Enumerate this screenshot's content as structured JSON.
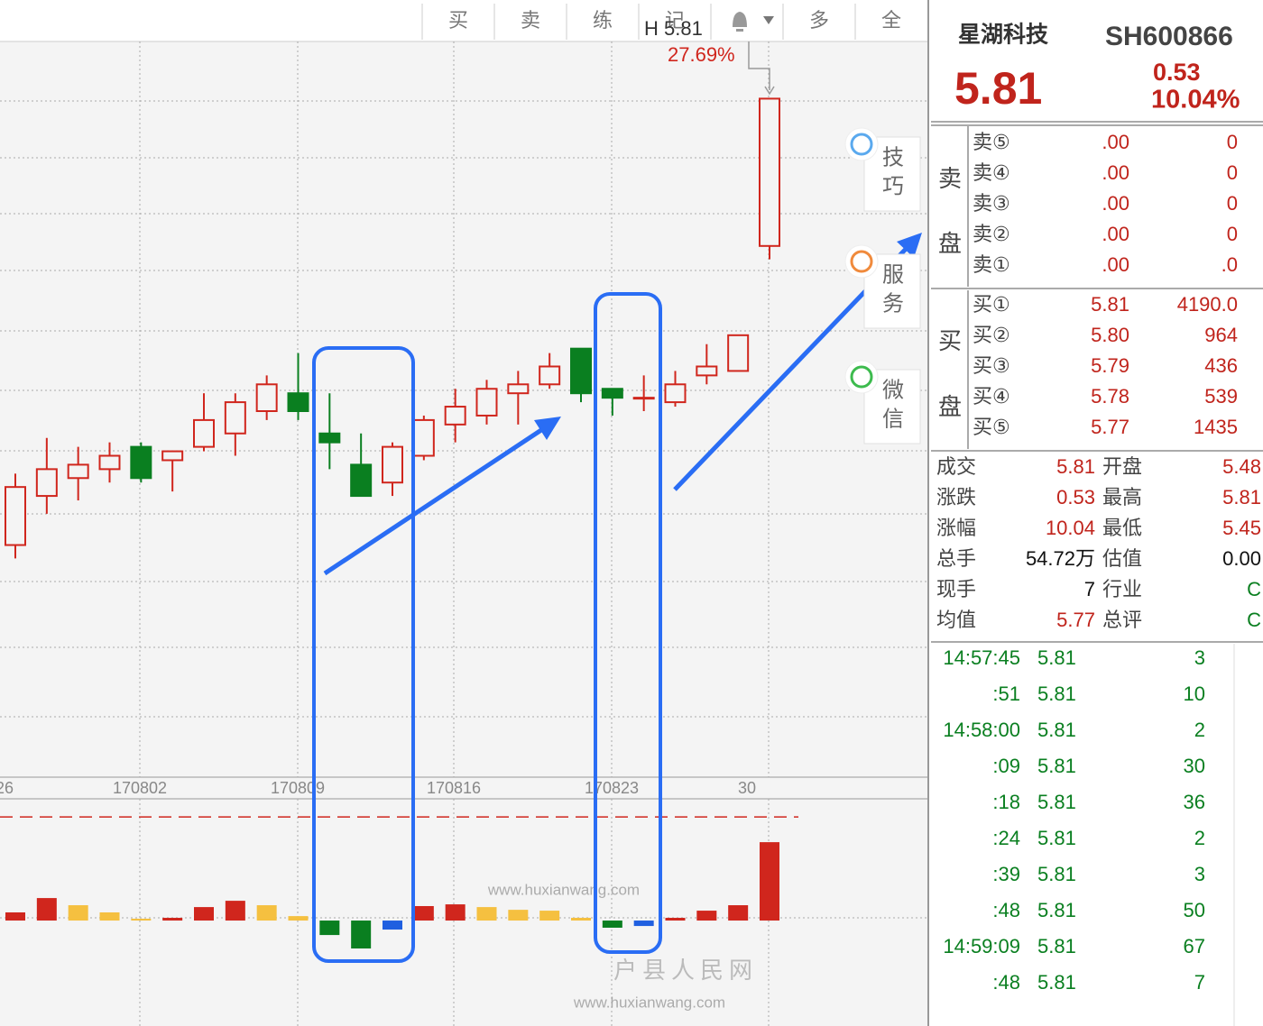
{
  "toolbar": {
    "buttons": [
      "买",
      "卖",
      "练",
      "记",
      "多",
      "全"
    ]
  },
  "chart_data": {
    "type": "candlestick",
    "open": [
      4.81,
      4.92,
      4.96,
      4.98,
      5.03,
      5.0,
      5.03,
      5.06,
      5.11,
      5.15,
      5.06,
      4.99,
      4.95,
      5.01,
      5.08,
      5.1,
      5.15,
      5.17,
      5.25,
      5.16,
      5.14,
      5.13,
      5.19,
      5.2,
      5.48
    ],
    "high": [
      4.97,
      5.05,
      5.03,
      5.04,
      5.04,
      5.02,
      5.15,
      5.15,
      5.19,
      5.24,
      5.15,
      5.06,
      5.04,
      5.1,
      5.16,
      5.18,
      5.2,
      5.24,
      5.25,
      5.16,
      5.19,
      5.2,
      5.26,
      5.28,
      5.81
    ],
    "low": [
      4.78,
      4.88,
      4.91,
      4.95,
      4.95,
      4.93,
      5.02,
      5.01,
      5.09,
      5.09,
      4.98,
      4.92,
      4.92,
      5.0,
      5.04,
      5.08,
      5.08,
      5.16,
      5.13,
      5.1,
      5.11,
      5.12,
      5.17,
      5.2,
      5.45
    ],
    "close": [
      4.94,
      4.98,
      4.99,
      5.01,
      4.96,
      5.02,
      5.09,
      5.13,
      5.17,
      5.11,
      5.04,
      4.92,
      5.03,
      5.09,
      5.12,
      5.16,
      5.17,
      5.21,
      5.15,
      5.14,
      5.14,
      5.17,
      5.21,
      5.28,
      5.81
    ],
    "up_color": "#d0261d",
    "down_color": "#0a7f20",
    "ylim": [
      4.29,
      5.93
    ],
    "x_labels": [
      "26",
      "170802",
      "170809",
      "170816",
      "170823",
      "30"
    ],
    "indicator": {
      "values": [
        5.7,
        15.7,
        10.7,
        5.7,
        1.3,
        1.9,
        9.4,
        13.8,
        10.7,
        3.1,
        -10.1,
        -19.5,
        -6.3,
        10.1,
        11.3,
        9.4,
        7.5,
        6.9,
        1.9,
        -5.0,
        -3.8,
        1.9,
        6.9,
        10.7,
        54.72
      ],
      "colors": [
        "#d0261d",
        "#d0261d",
        "#f5c040",
        "#f5c040",
        "#f5c040",
        "#d0261d",
        "#d0261d",
        "#d0261d",
        "#f5c040",
        "#f5c040",
        "#0a7f20",
        "#0a7f20",
        "#1f5fe0",
        "#d0261d",
        "#d0261d",
        "#f5c040",
        "#f5c040",
        "#f5c040",
        "#f5c040",
        "#0a7f20",
        "#1f5fe0",
        "#d0261d",
        "#d0261d",
        "#d0261d",
        "#d0261d"
      ],
      "ylim": [
        -56,
        85
      ],
      "ref": 72.3
    }
  },
  "annotation": {
    "high_label": "H 5.81",
    "high_pct": "27.69%"
  },
  "side_buttons": [
    [
      "技",
      "巧"
    ],
    [
      "服",
      "务"
    ],
    [
      "微",
      "信"
    ]
  ],
  "quote": {
    "name": "星湖科技",
    "code": "SH600866",
    "price": "5.81",
    "change": "0.53",
    "pct": "10.04%"
  },
  "sell": {
    "side": [
      "卖",
      "盘"
    ],
    "rows": [
      [
        "卖⑤",
        ".00",
        "0"
      ],
      [
        "卖④",
        ".00",
        "0"
      ],
      [
        "卖③",
        ".00",
        "0"
      ],
      [
        "卖②",
        ".00",
        "0"
      ],
      [
        "卖①",
        ".00",
        ".0"
      ]
    ]
  },
  "buy": {
    "side": [
      "买",
      "盘"
    ],
    "rows": [
      [
        "买①",
        "5.81",
        "4190.0"
      ],
      [
        "买②",
        "5.80",
        "964"
      ],
      [
        "买③",
        "5.79",
        "436"
      ],
      [
        "买④",
        "5.78",
        "539"
      ],
      [
        "买⑤",
        "5.77",
        "1435"
      ]
    ]
  },
  "stats": [
    [
      "成交",
      "5.81",
      "开盘",
      "5.48"
    ],
    [
      "涨跌",
      "0.53",
      "最高",
      "5.81"
    ],
    [
      "涨幅",
      "10.04",
      "最低",
      "5.45"
    ],
    [
      "总手",
      "54.72万",
      "估值",
      "0.00"
    ],
    [
      "现手",
      "7",
      "行业",
      "C"
    ],
    [
      "均值",
      "5.77",
      "总评",
      "C"
    ]
  ],
  "ticks": [
    [
      "14:57:45",
      "5.81",
      "3"
    ],
    [
      ":51",
      "5.81",
      "10"
    ],
    [
      "14:58:00",
      "5.81",
      "2"
    ],
    [
      ":09",
      "5.81",
      "30"
    ],
    [
      ":18",
      "5.81",
      "36"
    ],
    [
      ":24",
      "5.81",
      "2"
    ],
    [
      ":39",
      "5.81",
      "3"
    ],
    [
      ":48",
      "5.81",
      "50"
    ],
    [
      "14:59:09",
      "5.81",
      "67"
    ],
    [
      ":48",
      "5.81",
      "7"
    ]
  ],
  "watermarks": [
    "www.huxianwang.com",
    "户县人民网",
    "www.huxianwang.com"
  ]
}
